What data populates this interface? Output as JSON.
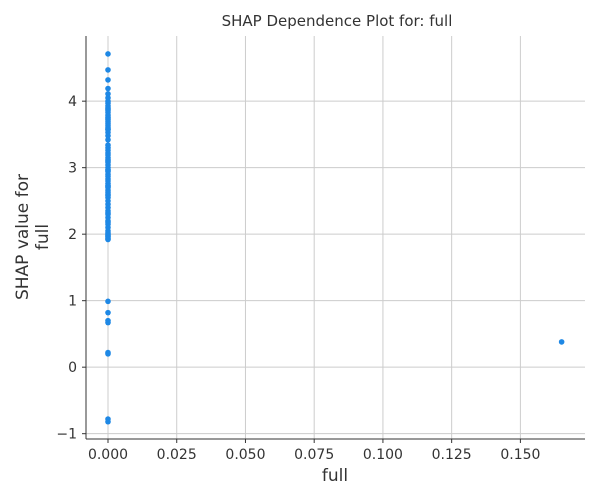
{
  "chart_data": {
    "type": "scatter",
    "title": "SHAP Dependence Plot for: full",
    "xlabel": "full",
    "ylabel_lines": [
      "SHAP value for",
      "full"
    ],
    "xlim": [
      -0.008,
      0.1735
    ],
    "ylim": [
      -1.08,
      4.98
    ],
    "xticks": [
      0.0,
      0.025,
      0.05,
      0.075,
      0.1,
      0.125,
      0.15
    ],
    "xtick_labels": [
      "0.000",
      "0.025",
      "0.050",
      "0.075",
      "0.100",
      "0.125",
      "0.150"
    ],
    "yticks": [
      -1,
      0,
      1,
      2,
      3,
      4
    ],
    "ytick_labels": [
      "−1",
      "0",
      "1",
      "2",
      "3",
      "4"
    ],
    "grid": true,
    "point_color": "#1e88e5",
    "series": [
      {
        "x": [
          0,
          0,
          0,
          0,
          0,
          0,
          0,
          0,
          0,
          0,
          0,
          0,
          0,
          0,
          0,
          0,
          0,
          0,
          0,
          0,
          0,
          0,
          0,
          0,
          0,
          0,
          0,
          0,
          0,
          0,
          0,
          0,
          0,
          0,
          0,
          0,
          0,
          0,
          0,
          0,
          0,
          0,
          0,
          0,
          0,
          0,
          0,
          0,
          0,
          0,
          0,
          0,
          0,
          0,
          0,
          0,
          0,
          0,
          0,
          0,
          0,
          0,
          0,
          0,
          0,
          0,
          0,
          0,
          0,
          0,
          0,
          0,
          0,
          0,
          0,
          0,
          0,
          0,
          0,
          0,
          0.165
        ],
        "y": [
          4.71,
          4.47,
          4.32,
          4.19,
          4.11,
          4.05,
          4.0,
          3.97,
          3.93,
          3.9,
          3.86,
          3.83,
          3.79,
          3.76,
          3.72,
          3.69,
          3.66,
          3.63,
          3.6,
          3.57,
          3.53,
          3.48,
          3.42,
          3.34,
          3.3,
          3.26,
          3.22,
          3.19,
          3.15,
          3.12,
          3.08,
          3.04,
          3.0,
          2.97,
          2.94,
          2.9,
          2.87,
          2.83,
          2.8,
          2.76,
          2.73,
          2.7,
          2.66,
          2.63,
          2.6,
          2.55,
          2.5,
          2.45,
          2.4,
          2.35,
          2.3,
          2.25,
          2.2,
          2.15,
          2.1,
          2.05,
          2.0,
          1.97,
          1.95,
          1.93,
          1.92,
          0.99,
          0.82,
          0.7,
          0.67,
          0.22,
          0.2,
          -0.78,
          -0.82,
          3.88,
          3.74,
          3.58,
          3.1,
          2.96,
          2.72,
          2.58,
          2.32,
          2.18,
          2.02,
          1.98,
          0.38
        ]
      }
    ]
  }
}
